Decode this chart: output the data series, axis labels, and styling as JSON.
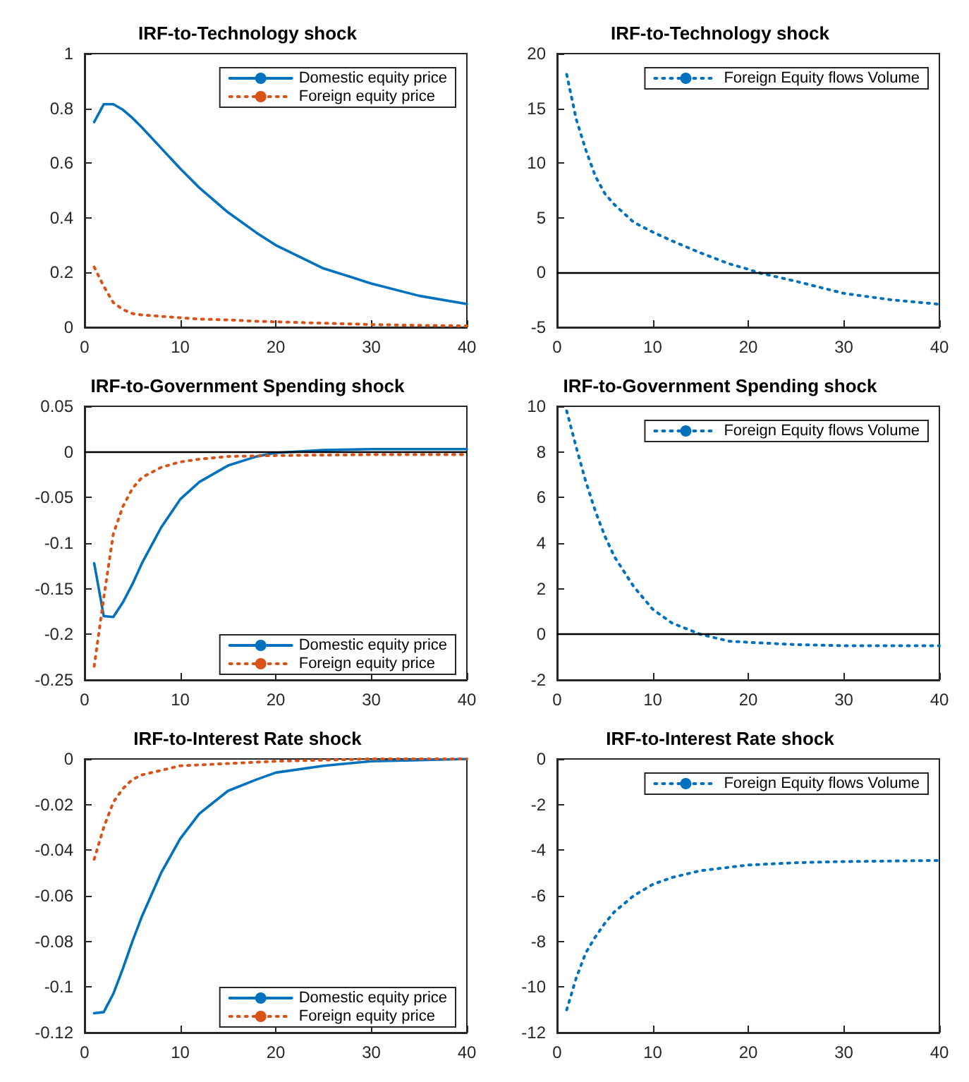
{
  "chart_data": [
    {
      "type": "line",
      "title": "IRF-to-Technology shock",
      "xlim": [
        0,
        40
      ],
      "xticks": [
        0,
        10,
        20,
        30,
        40
      ],
      "ylim": [
        0,
        1
      ],
      "yticks": [
        0,
        0.2,
        0.4,
        0.6,
        0.8,
        1
      ],
      "legend": "top right",
      "grid": false,
      "series": [
        {
          "name": "Domestic equity price",
          "color": "#0072bd",
          "line_style": "solid",
          "x": [
            1,
            2,
            3,
            4,
            5,
            6,
            8,
            10,
            12,
            15,
            18,
            20,
            25,
            30,
            35,
            40
          ],
          "values": [
            0.75,
            0.815,
            0.815,
            0.795,
            0.765,
            0.73,
            0.655,
            0.58,
            0.51,
            0.42,
            0.345,
            0.3,
            0.215,
            0.16,
            0.115,
            0.085
          ]
        },
        {
          "name": "Foreign equity price",
          "color": "#d95319",
          "line_style": "dotted",
          "x": [
            1,
            2,
            3,
            4,
            5,
            6,
            8,
            10,
            12,
            15,
            18,
            20,
            25,
            30,
            35,
            40
          ],
          "values": [
            0.22,
            0.15,
            0.09,
            0.065,
            0.05,
            0.045,
            0.04,
            0.035,
            0.03,
            0.027,
            0.022,
            0.02,
            0.015,
            0.01,
            0.007,
            0.005
          ]
        }
      ]
    },
    {
      "type": "line",
      "title": "IRF-to-Technology shock",
      "xlim": [
        0,
        40
      ],
      "xticks": [
        0,
        10,
        20,
        30,
        40
      ],
      "ylim": [
        -5,
        20
      ],
      "yticks": [
        -5,
        0,
        5,
        10,
        15,
        20
      ],
      "legend": "top right",
      "grid": false,
      "ref_lines": [
        {
          "axis": "y",
          "value": 0,
          "color": "#000000"
        }
      ],
      "series": [
        {
          "name": "Foreign Equity flows Volume",
          "color": "#0072bd",
          "line_style": "dotted",
          "x": [
            1,
            2,
            3,
            4,
            5,
            6,
            8,
            10,
            12,
            15,
            18,
            20,
            21,
            25,
            30,
            35,
            40
          ],
          "values": [
            18.1,
            14,
            11.2,
            8.8,
            7.2,
            6.2,
            4.6,
            3.7,
            2.9,
            1.8,
            0.8,
            0.3,
            0,
            -0.8,
            -1.9,
            -2.5,
            -2.9
          ]
        }
      ]
    },
    {
      "type": "line",
      "title": "IRF-to-Government Spending shock",
      "xlim": [
        0,
        40
      ],
      "xticks": [
        0,
        10,
        20,
        30,
        40
      ],
      "ylim": [
        -0.25,
        0.05
      ],
      "yticks": [
        -0.25,
        -0.2,
        -0.15,
        -0.1,
        -0.05,
        0,
        0.05
      ],
      "legend": "bottom right",
      "grid": false,
      "ref_lines": [
        {
          "axis": "y",
          "value": 0,
          "color": "#000000"
        }
      ],
      "series": [
        {
          "name": "Domestic equity price",
          "color": "#0072bd",
          "line_style": "solid",
          "x": [
            1,
            2,
            3,
            4,
            5,
            6,
            8,
            10,
            12,
            15,
            18,
            20,
            25,
            30,
            35,
            40
          ],
          "values": [
            -0.122,
            -0.18,
            -0.181,
            -0.165,
            -0.145,
            -0.122,
            -0.083,
            -0.052,
            -0.033,
            -0.015,
            -0.005,
            -0.001,
            0.002,
            0.003,
            0.003,
            0.003
          ]
        },
        {
          "name": "Foreign equity price",
          "color": "#d95319",
          "line_style": "dotted",
          "x": [
            1,
            2,
            3,
            4,
            5,
            6,
            8,
            10,
            12,
            15,
            20,
            30,
            40
          ],
          "values": [
            -0.235,
            -0.16,
            -0.09,
            -0.06,
            -0.04,
            -0.028,
            -0.017,
            -0.011,
            -0.008,
            -0.005,
            -0.004,
            -0.003,
            -0.003
          ]
        }
      ]
    },
    {
      "type": "line",
      "title": "IRF-to-Government Spending shock",
      "xlim": [
        0,
        40
      ],
      "xticks": [
        0,
        10,
        20,
        30,
        40
      ],
      "ylim": [
        -2,
        10
      ],
      "yticks": [
        -2,
        0,
        2,
        4,
        6,
        8,
        10
      ],
      "legend": "top right",
      "grid": false,
      "ref_lines": [
        {
          "axis": "y",
          "value": 0,
          "color": "#000000"
        }
      ],
      "series": [
        {
          "name": "Foreign Equity flows Volume",
          "color": "#0072bd",
          "line_style": "dotted",
          "x": [
            1,
            2,
            3,
            4,
            5,
            6,
            8,
            10,
            12,
            15,
            18,
            20,
            25,
            30,
            40
          ],
          "values": [
            9.8,
            8.2,
            6.7,
            5.4,
            4.3,
            3.4,
            2.1,
            1.1,
            0.5,
            0,
            -0.3,
            -0.35,
            -0.45,
            -0.5,
            -0.5
          ]
        }
      ]
    },
    {
      "type": "line",
      "title": "IRF-to-Interest Rate shock",
      "xlim": [
        0,
        40
      ],
      "xticks": [
        0,
        10,
        20,
        30,
        40
      ],
      "ylim": [
        -0.12,
        0
      ],
      "yticks": [
        -0.12,
        -0.1,
        -0.08,
        -0.06,
        -0.04,
        -0.02,
        0
      ],
      "legend": "bottom right",
      "grid": false,
      "series": [
        {
          "name": "Domestic equity price",
          "color": "#0072bd",
          "line_style": "solid",
          "x": [
            1,
            2,
            3,
            4,
            5,
            6,
            8,
            10,
            12,
            15,
            18,
            20,
            25,
            30,
            35,
            40
          ],
          "values": [
            -0.1115,
            -0.111,
            -0.103,
            -0.092,
            -0.08,
            -0.069,
            -0.05,
            -0.035,
            -0.024,
            -0.014,
            -0.009,
            -0.006,
            -0.003,
            -0.001,
            -0.0005,
            0
          ]
        },
        {
          "name": "Foreign equity price",
          "color": "#d95319",
          "line_style": "dotted",
          "x": [
            1,
            2,
            3,
            4,
            5,
            6,
            8,
            10,
            15,
            20,
            30,
            40
          ],
          "values": [
            -0.044,
            -0.03,
            -0.019,
            -0.013,
            -0.009,
            -0.007,
            -0.005,
            -0.003,
            -0.002,
            -0.001,
            0,
            0
          ]
        }
      ]
    },
    {
      "type": "line",
      "title": "IRF-to-Interest Rate shock",
      "xlim": [
        0,
        40
      ],
      "xticks": [
        0,
        10,
        20,
        30,
        40
      ],
      "ylim": [
        -12,
        0
      ],
      "yticks": [
        -12,
        -10,
        -8,
        -6,
        -4,
        -2,
        0
      ],
      "legend": "top right",
      "grid": false,
      "series": [
        {
          "name": "Foreign Equity flows Volume",
          "color": "#0072bd",
          "line_style": "dotted",
          "x": [
            1,
            2,
            3,
            4,
            5,
            6,
            8,
            10,
            12,
            15,
            20,
            25,
            30,
            40
          ],
          "values": [
            -11,
            -9.6,
            -8.5,
            -7.8,
            -7.2,
            -6.7,
            -6,
            -5.5,
            -5.2,
            -4.9,
            -4.65,
            -4.55,
            -4.5,
            -4.45
          ]
        }
      ]
    }
  ]
}
